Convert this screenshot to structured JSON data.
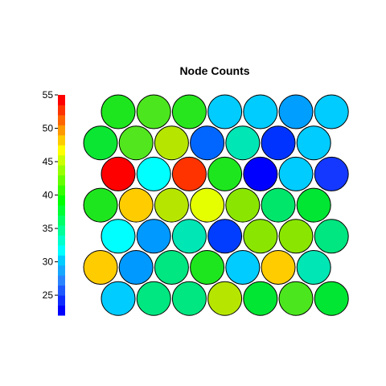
{
  "chart_data": {
    "type": "heatmap",
    "title": "Node Counts",
    "subtype": "hexagonal SOM node counts (circles)",
    "grid": false,
    "legend": "left color bar",
    "color_scale": {
      "range": [
        22,
        55
      ],
      "ticks": [
        "25",
        "30",
        "35",
        "40",
        "45",
        "50",
        "55"
      ],
      "tick_values": [
        25,
        30,
        35,
        40,
        45,
        50,
        55
      ],
      "colors": [
        "#0000ff",
        "#0f2cff",
        "#1e58ff",
        "#2a84ff",
        "#16a8ff",
        "#00ccff",
        "#00ffff",
        "#00ffcc",
        "#00ff99",
        "#00ff66",
        "#00ff33",
        "#00ff00",
        "#33ff00",
        "#66ff00",
        "#99ff00",
        "#ccff00",
        "#ffff00",
        "#ffcc00",
        "#ff9900",
        "#ff6600",
        "#ff3300",
        "#ff0000"
      ]
    },
    "rows": [
      {
        "offset": false,
        "colors": [
          "#1ee61e",
          "#4ce61e",
          "#28e61e",
          "#00ccff",
          "#00ccff",
          "#009eff",
          "#00ccff"
        ]
      },
      {
        "offset": true,
        "colors": [
          "#0be633",
          "#52e61e",
          "#b6e600",
          "#0066ff",
          "#00e6b4",
          "#0033ff",
          "#00ccff"
        ]
      },
      {
        "offset": false,
        "colors": [
          "#ff0000",
          "#00ffff",
          "#ff3300",
          "#1ee61e",
          "#0000ff",
          "#00ccff",
          "#1438ff"
        ]
      },
      {
        "offset": true,
        "colors": [
          "#1ee61e",
          "#ffcc00",
          "#b6e600",
          "#e6ff00",
          "#8ae600",
          "#00e66b",
          "#00e633"
        ]
      },
      {
        "offset": false,
        "colors": [
          "#00ffff",
          "#0099ff",
          "#00e6b4",
          "#003dff",
          "#8ae600",
          "#8ae600",
          "#00e680"
        ]
      },
      {
        "offset": true,
        "colors": [
          "#ffcc00",
          "#0099ff",
          "#00e680",
          "#1ee61e",
          "#00ccff",
          "#ffcc00",
          "#00e6b4"
        ]
      },
      {
        "offset": false,
        "colors": [
          "#00ccff",
          "#00e680",
          "#00e680",
          "#b6e600",
          "#00e633",
          "#4ce61e",
          "#00e633"
        ]
      }
    ]
  }
}
